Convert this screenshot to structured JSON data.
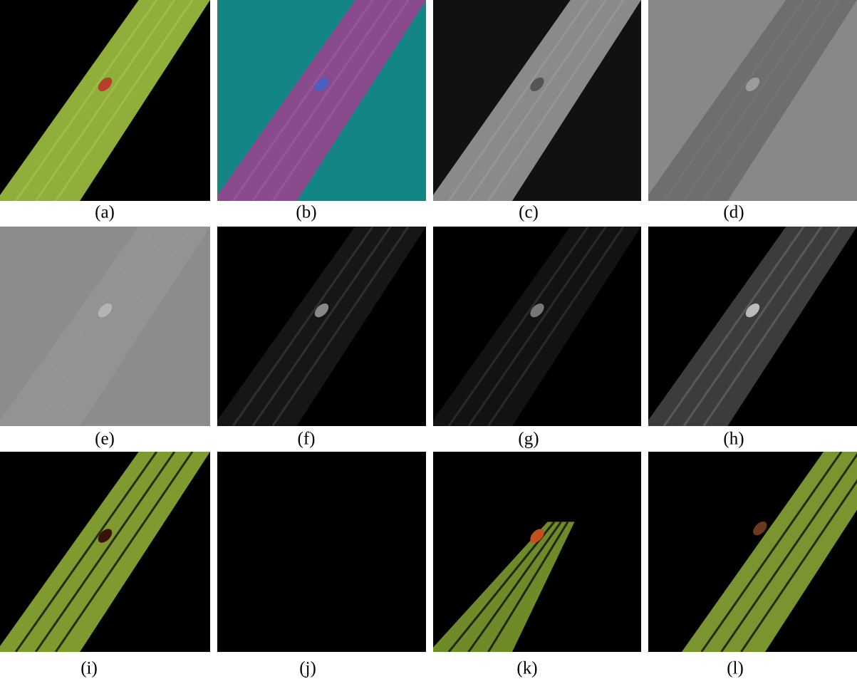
{
  "figure": {
    "panels": [
      {
        "label": "(a)"
      },
      {
        "label": "(b)"
      },
      {
        "label": "(c)"
      },
      {
        "label": "(d)"
      },
      {
        "label": "(e)"
      },
      {
        "label": "(f)"
      },
      {
        "label": "(g)"
      },
      {
        "label": "(h)"
      },
      {
        "label": "(i)"
      },
      {
        "label": "(j)"
      },
      {
        "label": "(k)"
      },
      {
        "label": "(l)"
      }
    ]
  }
}
